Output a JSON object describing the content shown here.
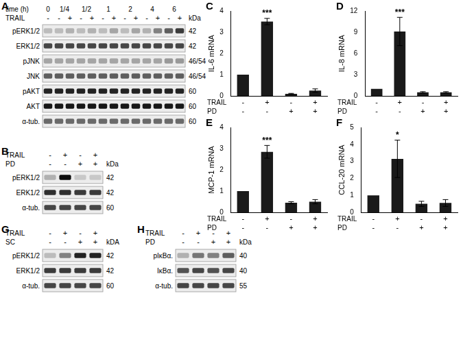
{
  "blots": [
    {
      "panel": "A",
      "header": [
        {
          "label": "time (h)",
          "groups": [
            {
              "text": "0",
              "lanes": 1
            },
            {
              "text": "1/4",
              "lanes": 2
            },
            {
              "text": "1/2",
              "lanes": 2
            },
            {
              "text": "1",
              "lanes": 2
            },
            {
              "text": "2",
              "lanes": 2
            },
            {
              "text": "4",
              "lanes": 2
            },
            {
              "text": "6",
              "lanes": 2
            }
          ]
        },
        {
          "label": "TRAIL",
          "signs": [
            "-",
            "-",
            "+",
            "-",
            "+",
            "-",
            "+",
            "-",
            "+",
            "-",
            "+",
            "-",
            "+"
          ]
        }
      ],
      "unit": "kDa",
      "rows": [
        {
          "label": "pERK1/2",
          "kda": "42",
          "bands": [
            0.2,
            0.2,
            0.25,
            0.2,
            0.25,
            0.2,
            0.3,
            0.2,
            0.3,
            0.25,
            0.45,
            0.6,
            0.75
          ]
        },
        {
          "label": "ERK1/2",
          "kda": "42",
          "bands": [
            0.7,
            0.7,
            0.7,
            0.7,
            0.7,
            0.7,
            0.7,
            0.7,
            0.7,
            0.7,
            0.7,
            0.7,
            0.7
          ]
        },
        {
          "label": "pJNK",
          "kda": "46/54",
          "bands": [
            0.3,
            0.3,
            0.3,
            0.3,
            0.3,
            0.3,
            0.3,
            0.3,
            0.3,
            0.3,
            0.3,
            0.35,
            0.35
          ]
        },
        {
          "label": "JNK",
          "kda": "46/54",
          "bands": [
            0.6,
            0.6,
            0.6,
            0.6,
            0.6,
            0.6,
            0.6,
            0.6,
            0.6,
            0.6,
            0.6,
            0.6,
            0.6
          ]
        },
        {
          "label": "pAKT",
          "kda": "60",
          "bands": [
            0.85,
            0.85,
            0.85,
            0.85,
            0.85,
            0.85,
            0.85,
            0.85,
            0.85,
            0.85,
            0.85,
            0.85,
            0.85
          ]
        },
        {
          "label": "AKT",
          "kda": "60",
          "bands": [
            0.9,
            0.9,
            0.9,
            0.9,
            0.9,
            0.9,
            0.9,
            0.9,
            0.9,
            0.9,
            0.9,
            0.9,
            0.9
          ]
        },
        {
          "label": "α-tub.",
          "kda": "60",
          "bands": [
            0.55,
            0.55,
            0.55,
            0.55,
            0.55,
            0.55,
            0.55,
            0.55,
            0.55,
            0.55,
            0.55,
            0.55,
            0.55
          ]
        }
      ]
    },
    {
      "panel": "B",
      "header": [
        {
          "label": "TRAIL",
          "signs": [
            "-",
            "+",
            "-",
            "+"
          ]
        },
        {
          "label": "PD",
          "signs": [
            "-",
            "-",
            "+",
            "+"
          ]
        }
      ],
      "unit": "kDa",
      "rows": [
        {
          "label": "pERK1/2",
          "kda": "42",
          "bands": [
            0.25,
            0.95,
            0.15,
            0.15
          ]
        },
        {
          "label": "ERK1/2",
          "kda": "42",
          "bands": [
            0.8,
            0.8,
            0.75,
            0.75
          ]
        },
        {
          "label": "α-tub.",
          "kda": "60",
          "bands": [
            0.7,
            0.7,
            0.7,
            0.7
          ]
        }
      ]
    },
    {
      "panel": "G",
      "header": [
        {
          "label": "TRAIL",
          "signs": [
            "-",
            "+",
            "-",
            "+"
          ]
        },
        {
          "label": "SC",
          "signs": [
            "-",
            "-",
            "+",
            "+"
          ]
        }
      ],
      "unit": "kDA",
      "rows": [
        {
          "label": "pERK1/2",
          "kda": "42",
          "bands": [
            0.2,
            0.45,
            0.85,
            0.85
          ]
        },
        {
          "label": "ERK1/2",
          "kda": "42",
          "bands": [
            0.75,
            0.75,
            0.75,
            0.75
          ]
        },
        {
          "label": "α-tub.",
          "kda": "60",
          "bands": [
            0.7,
            0.7,
            0.7,
            0.7
          ]
        }
      ]
    },
    {
      "panel": "H",
      "header": [
        {
          "label": "TRAIL",
          "signs": [
            "-",
            "+",
            "-",
            "+"
          ]
        },
        {
          "label": "PD",
          "signs": [
            "-",
            "-",
            "+",
            "+"
          ]
        }
      ],
      "unit": "kDa",
      "rows": [
        {
          "label": "pIκBα.",
          "kda": "40",
          "bands": [
            0.25,
            0.5,
            0.45,
            0.6
          ]
        },
        {
          "label": "IκBα.",
          "kda": "40",
          "bands": [
            0.65,
            0.7,
            0.65,
            0.7
          ]
        },
        {
          "label": "α-tub.",
          "kda": "55",
          "bands": [
            0.7,
            0.7,
            0.7,
            0.7
          ]
        }
      ]
    }
  ],
  "chart_data": [
    {
      "type": "bar",
      "panel": "C",
      "y_label": "IL-6 mRNA",
      "color": "#1a1a1a",
      "conditions": [
        {
          "label": "TRAIL",
          "signs": [
            "-",
            "+",
            "-",
            "+"
          ]
        },
        {
          "label": "PD",
          "signs": [
            "-",
            "-",
            "+",
            "+"
          ]
        }
      ],
      "values": [
        1,
        3.5,
        0.1,
        0.25
      ],
      "errors": [
        null,
        0.15,
        0.02,
        0.08
      ],
      "significance": [
        null,
        "***",
        null,
        null
      ],
      "ylim": [
        0,
        4
      ],
      "yticks": [
        0,
        1,
        2,
        3,
        4
      ],
      "grid": false
    },
    {
      "type": "bar",
      "panel": "D",
      "y_label": "IL-8 mRNA",
      "color": "#1a1a1a",
      "conditions": [
        {
          "label": "TRAIL",
          "signs": [
            "-",
            "+",
            "-",
            "+"
          ]
        },
        {
          "label": "PD",
          "signs": [
            "-",
            "-",
            "+",
            "+"
          ]
        }
      ],
      "values": [
        1,
        9.1,
        0.5,
        0.5
      ],
      "errors": [
        null,
        2.0,
        0.1,
        0.1
      ],
      "significance": [
        null,
        "***",
        null,
        null
      ],
      "ylim": [
        0,
        12
      ],
      "yticks": [
        0,
        3,
        6,
        9,
        12
      ],
      "grid": false
    },
    {
      "type": "bar",
      "panel": "E",
      "y_label": "MCP-1 mRNA",
      "color": "#1a1a1a",
      "conditions": [
        {
          "label": "TRAIL",
          "signs": [
            "-",
            "+",
            "-",
            "+"
          ]
        },
        {
          "label": "PD",
          "signs": [
            "-",
            "-",
            "+",
            "+"
          ]
        }
      ],
      "values": [
        1,
        2.85,
        0.45,
        0.5
      ],
      "errors": [
        null,
        0.3,
        0.05,
        0.1
      ],
      "significance": [
        null,
        "***",
        null,
        null
      ],
      "ylim": [
        0,
        4
      ],
      "yticks": [
        0,
        1,
        2,
        3,
        4
      ],
      "grid": false
    },
    {
      "type": "bar",
      "panel": "F",
      "y_label": "CCL-20 mRNA",
      "color": "#1a1a1a",
      "conditions": [
        {
          "label": "TRAIL",
          "signs": [
            "-",
            "+",
            "-",
            "+"
          ]
        },
        {
          "label": "PD",
          "signs": [
            "-",
            "-",
            "+",
            "+"
          ]
        }
      ],
      "values": [
        1,
        3.15,
        0.5,
        0.55
      ],
      "errors": [
        null,
        1.1,
        0.15,
        0.2
      ],
      "significance": [
        null,
        "*",
        null,
        null
      ],
      "ylim": [
        0,
        5
      ],
      "yticks": [
        0,
        1,
        2,
        3,
        4,
        5
      ],
      "grid": false
    }
  ]
}
